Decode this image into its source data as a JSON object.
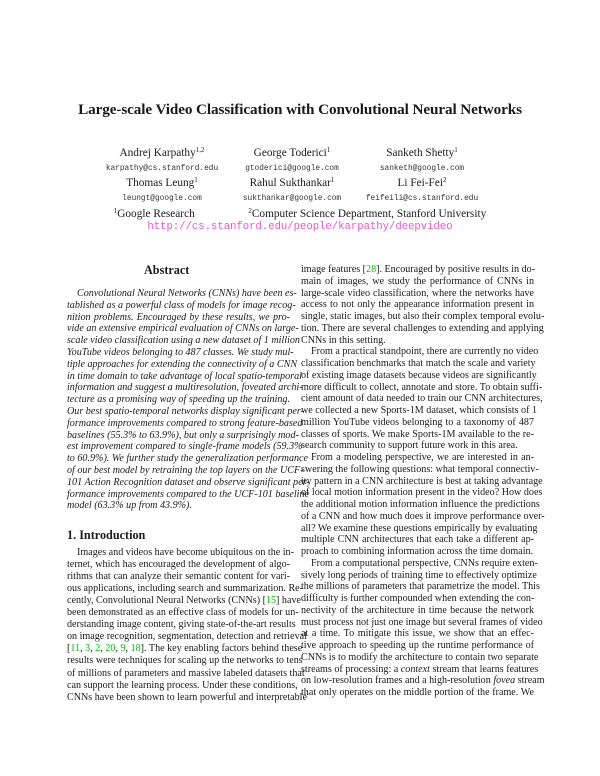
{
  "title": "Large-scale Video Classification with Convolutional Neural Networks",
  "authors": [
    {
      "name": "Andrej Karpathy",
      "sup": "1,2",
      "email": "karpathy@cs.stanford.edu"
    },
    {
      "name": "George Toderici",
      "sup": "1",
      "email": "gtoderici@google.com"
    },
    {
      "name": "Sanketh Shetty",
      "sup": "1",
      "email": "sanketh@google.com"
    },
    {
      "name": "Thomas Leung",
      "sup": "1",
      "email": "leungt@google.com"
    },
    {
      "name": "Rahul Sukthankar",
      "sup": "1",
      "email": "sukthankar@google.com"
    },
    {
      "name": "Li Fei-Fei",
      "sup": "2",
      "email": "feifeili@cs.stanford.edu"
    }
  ],
  "affiliations": [
    {
      "sup": "1",
      "name": "Google Research"
    },
    {
      "sup": "2",
      "name": "Computer Science Department, Stanford University"
    }
  ],
  "url": "http://cs.stanford.edu/people/karpathy/deepvideo",
  "colors": {
    "citation": "#00c000",
    "url": "#ee55cc"
  },
  "abstract": {
    "heading": "Abstract",
    "lines": [
      "Convolutional Neural Networks (CNNs) have been es-",
      "tablished as a powerful class of models for image recog-",
      "nition problems.  Encouraged by these results, we pro-",
      "vide an extensive empirical evaluation of CNNs on large-",
      "scale video classification using a new dataset of 1 million",
      "YouTube videos belonging to 487 classes.  We study mul-",
      "tiple approaches for extending the connectivity of a CNN",
      "in time domain to take advantage of local spatio-temporal",
      "information and suggest a multiresolution, foveated archi-",
      "tecture as a promising way of speeding up the training.",
      "Our best spatio-temporal networks display significant per-",
      "formance improvements compared to strong feature-based",
      "baselines (55.3% to 63.9%), but only a surprisingly mod-",
      "est improvement compared to single-frame models (59.3%",
      "to 60.9%). We further study the generalization performance",
      "of our best model by retraining the top layers on the UCF-",
      "101 Action Recognition dataset and observe significant per-",
      "formance improvements compared to the UCF-101 baseline",
      "model (63.3% up from 43.9%)."
    ]
  },
  "introduction": {
    "heading": "1. Introduction",
    "left_lines": [
      [
        "Images and videos have become ubiquitous on the in-"
      ],
      [
        "ternet, which has encouraged the development of algo-"
      ],
      [
        "rithms that can analyze their semantic content for vari-"
      ],
      [
        "ous applications, including search and summarization. Re-"
      ],
      [
        "cently, Convolutional Neural Networks (CNNs) [",
        {
          "cite": "15"
        },
        "] have"
      ],
      [
        "been demonstrated as an effective class of models for un-"
      ],
      [
        "derstanding image content, giving state-of-the-art results"
      ],
      [
        "on image recognition, segmentation, detection and retrieval"
      ],
      [
        "[",
        {
          "cite": "11"
        },
        ", ",
        {
          "cite": "3"
        },
        ", ",
        {
          "cite": "2"
        },
        ", ",
        {
          "cite": "20"
        },
        ", ",
        {
          "cite": "9"
        },
        ", ",
        {
          "cite": "18"
        },
        "]. The key enabling factors behind these"
      ],
      [
        "results were techniques for scaling up the networks to tens"
      ],
      [
        "of millions of parameters and massive labeled datasets that"
      ],
      [
        "can support the learning process.  Under these conditions,"
      ],
      [
        "CNNs have been shown to learn powerful and interpretable"
      ]
    ],
    "right_paragraphs": [
      [
        [
          "image features [",
          {
            "cite": "28"
          },
          "]. Encouraged by positive results in do-"
        ],
        [
          "main of images, we study the performance of CNNs in"
        ],
        [
          "large-scale video classification, where the networks have"
        ],
        [
          "access to not only the appearance information present in"
        ],
        [
          "single, static images, but also their complex temporal evolu-"
        ],
        [
          "tion. There are several challenges to extending and applying"
        ],
        [
          "CNNs in this setting."
        ]
      ],
      [
        [
          "From a practical standpoint, there are currently no video"
        ],
        [
          "classification benchmarks that match the scale and variety"
        ],
        [
          "of existing image datasets because videos are significantly"
        ],
        [
          "more difficult to collect, annotate and store. To obtain suffi-"
        ],
        [
          "cient amount of data needed to train our CNN architectures,"
        ],
        [
          "we collected a new Sports-1M dataset, which consists of 1"
        ],
        [
          "million YouTube videos belonging to a taxonomy of 487"
        ],
        [
          "classes of sports.  We make Sports-1M available to the re-"
        ],
        [
          "search community to support future work in this area."
        ]
      ],
      [
        [
          "From a modeling perspective, we are interested in an-"
        ],
        [
          "swering the following questions: what temporal connectiv-"
        ],
        [
          "ity pattern in a CNN architecture is best at taking advantage"
        ],
        [
          "of local motion information present in the video? How does"
        ],
        [
          "the additional motion information influence the predictions"
        ],
        [
          "of a CNN and how much does it improve performance over-"
        ],
        [
          "all? We examine these questions empirically by evaluating"
        ],
        [
          "multiple CNN architectures that each take a different ap-"
        ],
        [
          "proach to combining information across the time domain."
        ]
      ],
      [
        [
          "From a computational perspective, CNNs require exten-"
        ],
        [
          "sively long periods of training time to effectively optimize"
        ],
        [
          "the millions of parameters that parametrize the model. This"
        ],
        [
          "difficulty is further compounded when extending the con-"
        ],
        [
          "nectivity of the architecture in time because the network"
        ],
        [
          "must process not just one image but several frames of video"
        ],
        [
          "at a time.  To mitigate this issue, we show that an effec-"
        ],
        [
          "tive approach to speeding up the runtime performance of"
        ],
        [
          "CNNs is to modify the architecture to contain two separate"
        ],
        [
          "streams of processing: a ",
          {
            "em": "context"
          },
          " stream that learns features"
        ],
        [
          "on low-resolution frames and a high-resolution ",
          {
            "em": "fovea"
          },
          " stream"
        ],
        [
          "that only operates on the middle portion of the frame.  We"
        ]
      ]
    ]
  }
}
